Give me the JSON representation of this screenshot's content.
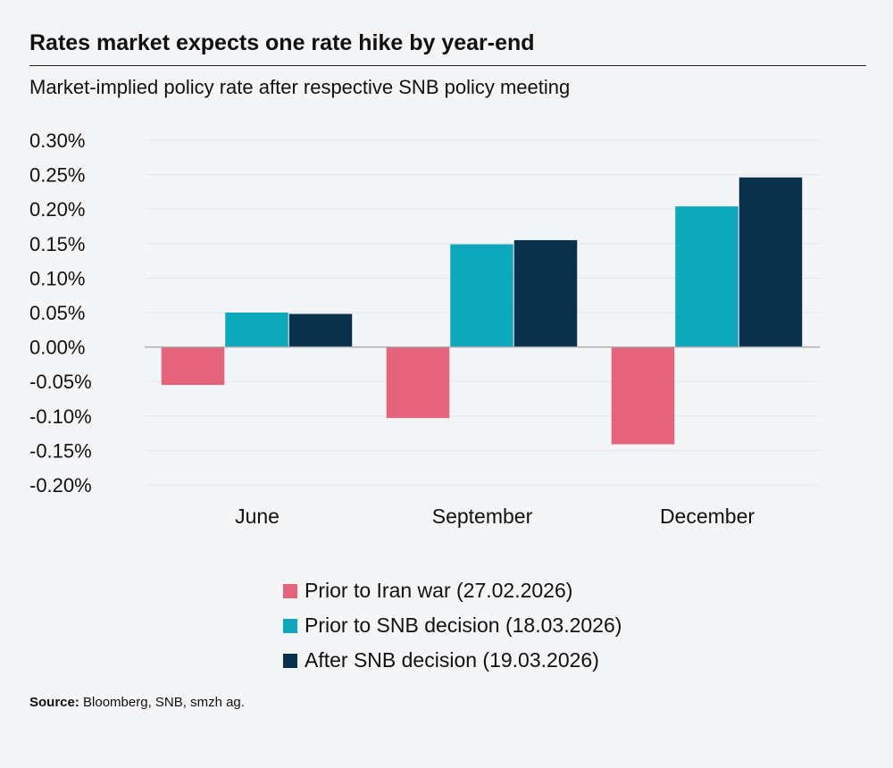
{
  "title": "Rates market expects one rate hike by year-end",
  "subtitle": "Market-implied policy rate after respective SNB policy meeting",
  "source_label": "Source:",
  "source_text": " Bloomberg, SNB, smzh ag.",
  "chart_data": {
    "type": "bar",
    "categories": [
      "June",
      "September",
      "December"
    ],
    "series": [
      {
        "name": "Prior to Iran war (27.02.2026)",
        "color": "#e5637b",
        "values": [
          -0.055,
          -0.103,
          -0.141
        ]
      },
      {
        "name": "Prior to SNB decision (18.03.2026)",
        "color": "#0ea8bd",
        "values": [
          0.05,
          0.149,
          0.204
        ]
      },
      {
        "name": "After SNB decision (19.03.2026)",
        "color": "#08304b",
        "values": [
          0.048,
          0.155,
          0.246
        ]
      }
    ],
    "ylim": [
      -0.2,
      0.3
    ],
    "yticks": [
      0.3,
      0.25,
      0.2,
      0.15,
      0.1,
      0.05,
      0.0,
      -0.05,
      -0.1,
      -0.15,
      -0.2
    ],
    "ytick_labels": [
      "0.30%",
      "0.25%",
      "0.20%",
      "0.15%",
      "0.10%",
      "0.05%",
      "0.00%",
      "-0.05%",
      "-0.10%",
      "-0.15%",
      "-0.20%"
    ],
    "grid": true,
    "legend_placement": "bottom"
  }
}
